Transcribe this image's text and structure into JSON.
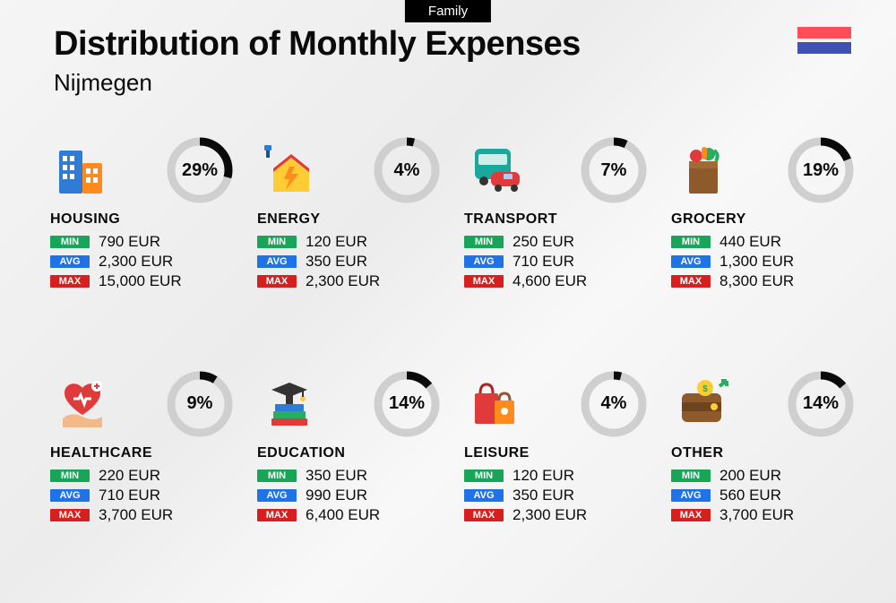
{
  "tag": "Family",
  "title": "Distribution of Monthly Expenses",
  "subtitle": "Nijmegen",
  "flag": {
    "top": "#ff4d5a",
    "bottom": "#3f51b5"
  },
  "donut": {
    "ring_bg": "#cfcfcf",
    "ring_fg": "#0a0a0a",
    "ring_width": 9,
    "radius": 32
  },
  "badges": {
    "min": {
      "label": "MIN",
      "bg": "#18a558"
    },
    "avg": {
      "label": "AVG",
      "bg": "#1e73e8"
    },
    "max": {
      "label": "MAX",
      "bg": "#d61f1f"
    }
  },
  "value_fontsize": 17,
  "title_fontsize": 38,
  "categories": [
    {
      "key": "housing",
      "name": "HOUSING",
      "percent": 29,
      "min": "790 EUR",
      "avg": "2,300 EUR",
      "max": "15,000 EUR",
      "icon": "buildings"
    },
    {
      "key": "energy",
      "name": "ENERGY",
      "percent": 4,
      "min": "120 EUR",
      "avg": "350 EUR",
      "max": "2,300 EUR",
      "icon": "energy-house"
    },
    {
      "key": "transport",
      "name": "TRANSPORT",
      "percent": 7,
      "min": "250 EUR",
      "avg": "710 EUR",
      "max": "4,600 EUR",
      "icon": "bus-car"
    },
    {
      "key": "grocery",
      "name": "GROCERY",
      "percent": 19,
      "min": "440 EUR",
      "avg": "1,300 EUR",
      "max": "8,300 EUR",
      "icon": "grocery-bag"
    },
    {
      "key": "healthcare",
      "name": "HEALTHCARE",
      "percent": 9,
      "min": "220 EUR",
      "avg": "710 EUR",
      "max": "3,700 EUR",
      "icon": "heart-hand"
    },
    {
      "key": "education",
      "name": "EDUCATION",
      "percent": 14,
      "min": "350 EUR",
      "avg": "990 EUR",
      "max": "6,400 EUR",
      "icon": "grad-books"
    },
    {
      "key": "leisure",
      "name": "LEISURE",
      "percent": 4,
      "min": "120 EUR",
      "avg": "350 EUR",
      "max": "2,300 EUR",
      "icon": "shopping-bags"
    },
    {
      "key": "other",
      "name": "OTHER",
      "percent": 14,
      "min": "200 EUR",
      "avg": "560 EUR",
      "max": "3,700 EUR",
      "icon": "wallet"
    }
  ],
  "icon_palette": {
    "blue": "#2e7cd6",
    "darkblue": "#1b4f9c",
    "red": "#e03a3a",
    "orange": "#ff8a1e",
    "yellow": "#ffcc33",
    "green": "#27ae60",
    "teal": "#1aa89c",
    "brown": "#8c5a2b",
    "purple": "#6c4bd0",
    "gray": "#6e6e6e",
    "skin": "#f2b98a",
    "darkred": "#b02323"
  }
}
